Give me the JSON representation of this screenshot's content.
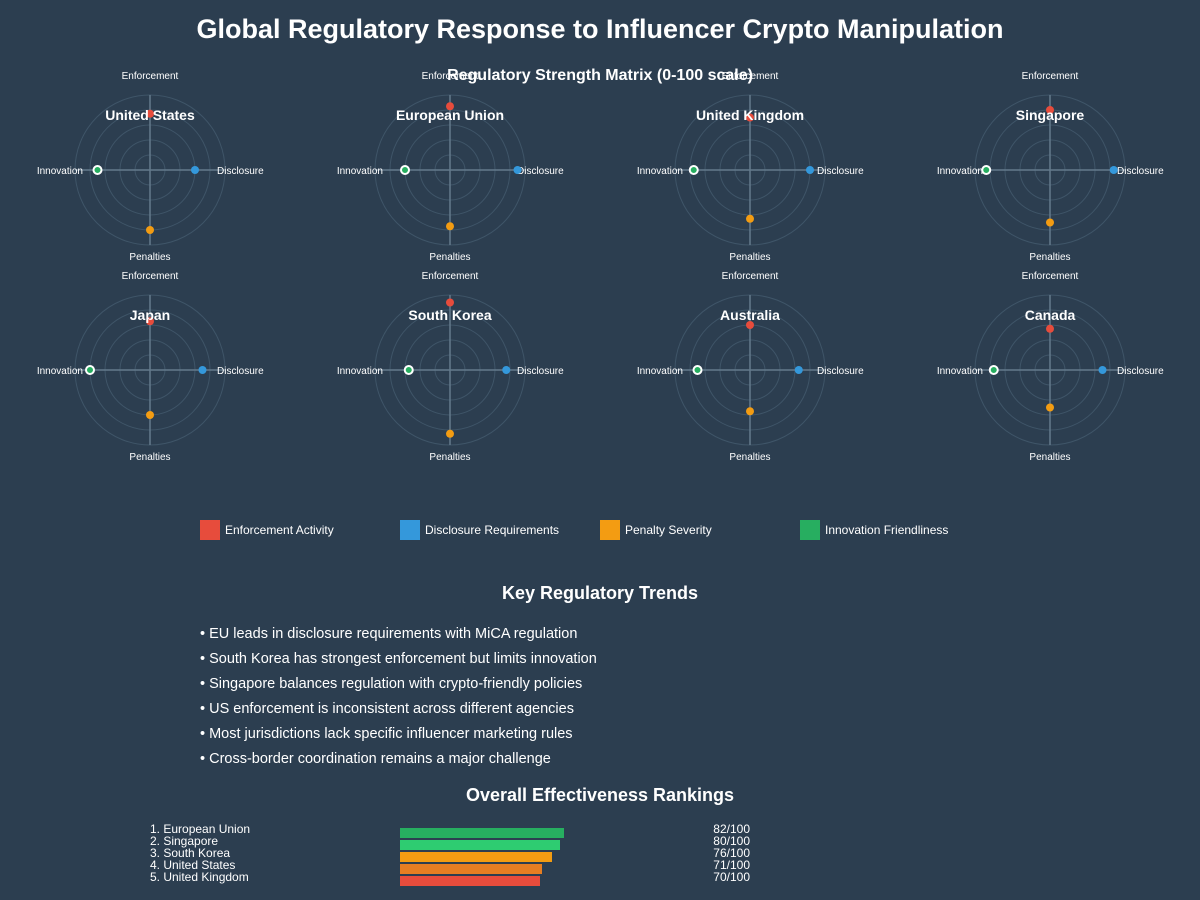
{
  "title": "Global Regulatory Response to Influencer Crypto Manipulation",
  "chart_data": {
    "type": "radar",
    "title": "Regulatory Strength Matrix (0-100 scale)",
    "axes": [
      "Enforcement",
      "Disclosure",
      "Penalties",
      "Innovation"
    ],
    "colors": {
      "Enforcement": "#e74c3c",
      "Disclosure": "#3498db",
      "Penalties": "#f39c12",
      "Innovation": "#27ae60"
    },
    "scale_max": 100,
    "countries": [
      {
        "name": "United States",
        "values": {
          "Enforcement": 75,
          "Disclosure": 60,
          "Penalties": 80,
          "Innovation": 70
        }
      },
      {
        "name": "European Union",
        "values": {
          "Enforcement": 85,
          "Disclosure": 90,
          "Penalties": 75,
          "Innovation": 60
        }
      },
      {
        "name": "United Kingdom",
        "values": {
          "Enforcement": 70,
          "Disclosure": 80,
          "Penalties": 65,
          "Innovation": 75
        }
      },
      {
        "name": "Singapore",
        "values": {
          "Enforcement": 80,
          "Disclosure": 85,
          "Penalties": 70,
          "Innovation": 85
        }
      },
      {
        "name": "Japan",
        "values": {
          "Enforcement": 65,
          "Disclosure": 70,
          "Penalties": 60,
          "Innovation": 80
        }
      },
      {
        "name": "South Korea",
        "values": {
          "Enforcement": 90,
          "Disclosure": 75,
          "Penalties": 85,
          "Innovation": 55
        }
      },
      {
        "name": "Australia",
        "values": {
          "Enforcement": 60,
          "Disclosure": 65,
          "Penalties": 55,
          "Innovation": 70
        }
      },
      {
        "name": "Canada",
        "values": {
          "Enforcement": 55,
          "Disclosure": 70,
          "Penalties": 50,
          "Innovation": 75
        }
      }
    ]
  },
  "legend": [
    {
      "label": "Enforcement Activity",
      "color": "#e74c3c"
    },
    {
      "label": "Disclosure Requirements",
      "color": "#3498db"
    },
    {
      "label": "Penalty Severity",
      "color": "#f39c12"
    },
    {
      "label": "Innovation Friendliness",
      "color": "#27ae60"
    }
  ],
  "trends": {
    "title": "Key Regulatory Trends",
    "items": [
      "• EU leads in disclosure requirements with MiCA regulation",
      "• South Korea has strongest enforcement but limits innovation",
      "• Singapore balances regulation with crypto-friendly policies",
      "• US enforcement is inconsistent across different agencies",
      "• Most jurisdictions lack specific influencer marketing rules",
      "• Cross-border coordination remains a major challenge"
    ]
  },
  "rankings": {
    "title": "Overall Effectiveness Rankings",
    "max": 100,
    "items": [
      {
        "label": "1. European Union",
        "score": 82,
        "score_text": "82/100",
        "color": "#27ae60"
      },
      {
        "label": "2. Singapore",
        "score": 80,
        "score_text": "80/100",
        "color": "#2ecc71"
      },
      {
        "label": "3. South Korea",
        "score": 76,
        "score_text": "76/100",
        "color": "#f39c12"
      },
      {
        "label": "4. United States",
        "score": 71,
        "score_text": "71/100",
        "color": "#e67e22"
      },
      {
        "label": "5. United Kingdom",
        "score": 70,
        "score_text": "70/100",
        "color": "#e74c3c"
      }
    ]
  }
}
